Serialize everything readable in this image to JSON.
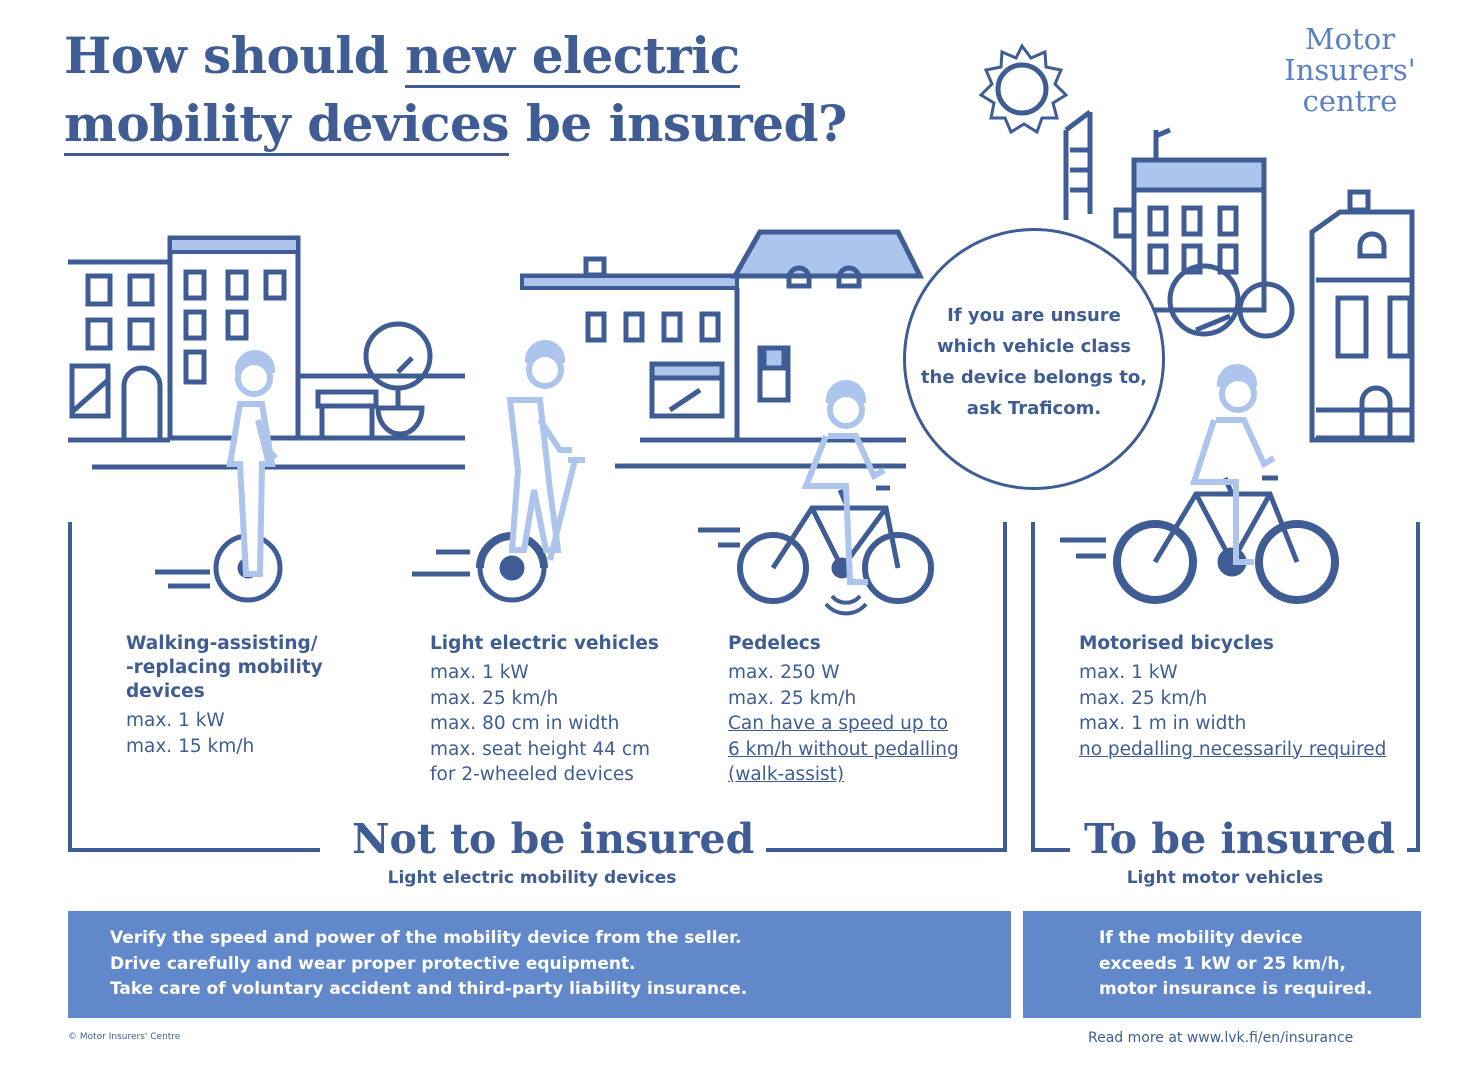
{
  "header": {
    "title_part1": "How should ",
    "title_underlined1": "new electric",
    "title_underlined2": "mobility devices",
    "title_part2": " be insured?",
    "logo_line1": "Motor",
    "logo_line2": "Insurers'",
    "logo_line3": "centre"
  },
  "bubble": {
    "line1": "If you are unsure",
    "line2": "which vehicle class",
    "line3": "the device belongs to,",
    "line4": "ask Traficom."
  },
  "categories": [
    {
      "name_line1": "Walking-assisting/",
      "name_line2": "-replacing mobility",
      "name_line3": "devices",
      "specs": [
        "max. 1 kW",
        "max. 15 km/h"
      ]
    },
    {
      "name": "Light electric vehicles",
      "specs": [
        "max. 1 kW",
        "max. 25 km/h",
        "max. 80 cm in width",
        "max. seat height 44 cm",
        "for 2-wheeled devices"
      ]
    },
    {
      "name": "Pedelecs",
      "specs": [
        "max. 250 W",
        "max. 25 km/h"
      ],
      "underlined": [
        "Can have a speed up to ",
        "6 km/h without pedalling",
        "(walk-assist)"
      ]
    },
    {
      "name": "Motorised bicycles",
      "specs": [
        "max. 1 kW",
        "max. 25 km/h",
        "max. 1 m in width"
      ],
      "underlined": [
        "no pedalling necessarily required"
      ]
    }
  ],
  "groups": {
    "not_insured": {
      "heading": "Not to be insured",
      "sub": "Light electric mobility devices"
    },
    "insured": {
      "heading": "To be insured",
      "sub": "Light motor vehicles"
    }
  },
  "info_left": {
    "line1": "Verify the speed and power of the mobility device from the seller.",
    "line2": "Drive carefully and wear proper protective equipment.",
    "line3": "Take care of voluntary accident and third-party liability insurance."
  },
  "info_right": {
    "line1": "If the mobility device",
    "line2": "exceeds 1 kW or 25 km/h,",
    "line3": "motor insurance is required."
  },
  "footer": {
    "copyright": "© Motor Insurers' Centre",
    "read_more": "Read more at www.lvk.fi/en/insurance"
  },
  "colors": {
    "dark_blue": "#3f5d94",
    "light_blue": "#adc4ec",
    "box_blue": "#6188cb"
  }
}
